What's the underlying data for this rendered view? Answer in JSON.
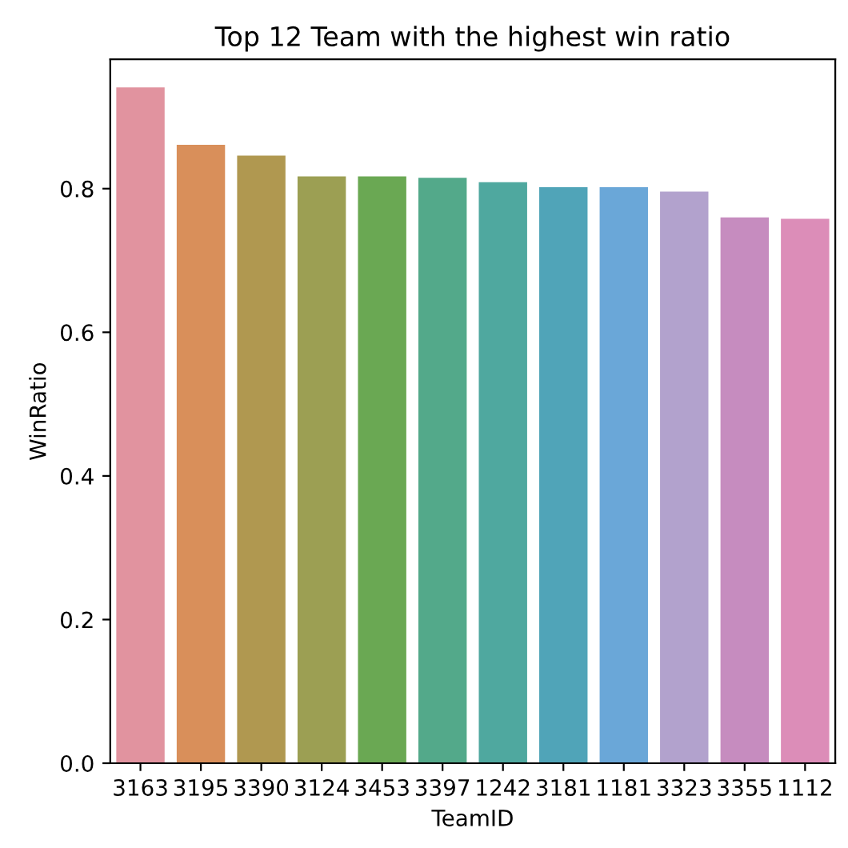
{
  "chart_data": {
    "type": "bar",
    "title": "Top 12 Team with the highest win ratio",
    "xlabel": "TeamID",
    "ylabel": "WinRatio",
    "categories": [
      "3163",
      "3195",
      "3390",
      "3124",
      "3453",
      "3397",
      "1242",
      "3181",
      "1181",
      "3323",
      "3355",
      "1112"
    ],
    "values": [
      0.941,
      0.861,
      0.846,
      0.817,
      0.817,
      0.815,
      0.809,
      0.802,
      0.802,
      0.796,
      0.76,
      0.758
    ],
    "colors": [
      "#e1939f",
      "#d98f5a",
      "#b09850",
      "#9c9f53",
      "#6aa853",
      "#53a98a",
      "#4fa89f",
      "#50a4b8",
      "#6aa7d8",
      "#b2a2cd",
      "#c68cbf",
      "#dc8db8"
    ],
    "ylim": [
      0,
      0.98
    ],
    "yticks": [
      {
        "value": 0,
        "label": "0.0"
      },
      0.2,
      0.4,
      0.6,
      0.8
    ],
    "grid": false
  }
}
